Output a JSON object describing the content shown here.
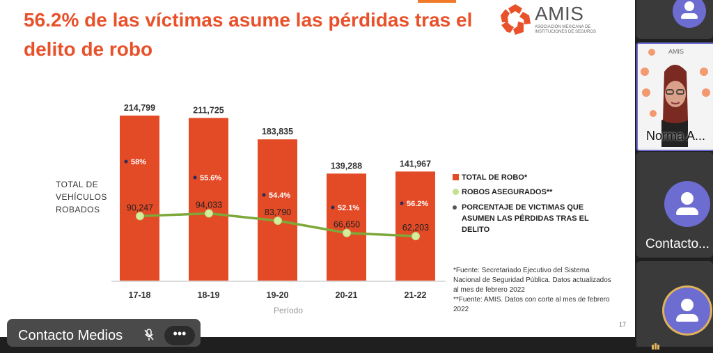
{
  "slide": {
    "title": "56.2% de las víctimas asume las pérdidas tras el delito de robo",
    "logo_name": "AMIS",
    "logo_sub": "ASOCIACIÓN MEXICANA DE INSTITUCIONES DE SEGUROS",
    "page_number": "17",
    "y_axis_label": "TOTAL DE VEHÍCULOS ROBADOS",
    "legend": [
      {
        "label": "TOTAL DE ROBO*",
        "color": "#e34a26"
      },
      {
        "label": "ROBOS ASEGURADOS**",
        "color": "#c5e08a"
      },
      {
        "label": "PORCENTAJE DE VICTIMAS QUE ASUMEN LAS PÉRDIDAS TRAS EL DELITO",
        "color": "#555555"
      }
    ],
    "footnotes": [
      "*Fuente: Secretariado Ejecutivo del Sistema Nacional de Seguridad Pública. Datos actualizados al mes de febrero 2022",
      "**Fuente: AMIS. Datos con corte al mes de febrero 2022"
    ]
  },
  "chart_data": {
    "type": "bar",
    "categories": [
      "17-18",
      "18-19",
      "19-20",
      "20-21",
      "21-22"
    ],
    "xlabel": "Período",
    "ylabel": "TOTAL DE VEHÍCULOS ROBADOS",
    "series": [
      {
        "name": "TOTAL DE ROBO*",
        "type": "bar",
        "values": [
          214799,
          211725,
          183835,
          139288,
          141967
        ],
        "labels": [
          "214,799",
          "211,725",
          "183,835",
          "139,288",
          "141,967"
        ],
        "color": "#e34a26"
      },
      {
        "name": "ROBOS ASEGURADOS**",
        "type": "line",
        "values": [
          90247,
          94033,
          83790,
          66650,
          62203
        ],
        "labels": [
          "90,247",
          "94,033",
          "83,790",
          "66,650",
          "62,203"
        ],
        "color": "#7fa83a"
      },
      {
        "name": "PORCENTAJE DE VICTIMAS QUE ASUMEN LAS PÉRDIDAS TRAS EL DELITO",
        "type": "label",
        "values": [
          58,
          55.6,
          54.4,
          52.1,
          56.2
        ],
        "labels": [
          "58%",
          "55.6%",
          "54.4%",
          "52.1%",
          "56.2%"
        ]
      }
    ],
    "ylim": [
      0,
      230000
    ]
  },
  "meeting": {
    "participants": [
      {
        "name": "Norma A..."
      },
      {
        "name": "Contacto..."
      }
    ],
    "presenter_name": "Contacto Medios",
    "more_label": "•••"
  },
  "colors": {
    "accent": "#e8512a",
    "bar": "#e34a26",
    "line": "#7fa83a",
    "marker": "#d4ec9c",
    "avatar": "#6c6cd1"
  }
}
